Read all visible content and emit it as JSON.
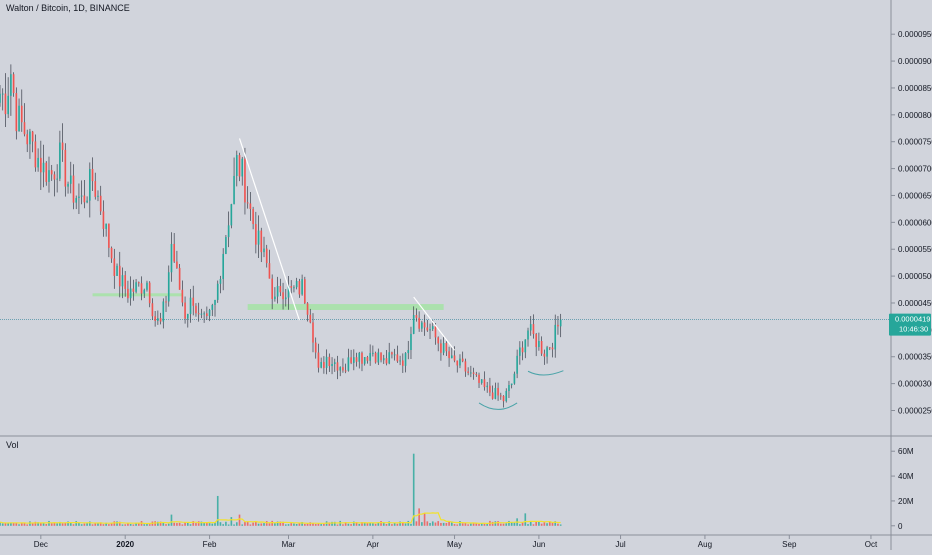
{
  "title": "Walton / Bitcoin, 1D, BINANCE",
  "volume_label": "Vol",
  "colors": {
    "background": "#d1d4dc",
    "up": "#26a69a",
    "down": "#ef5350",
    "price_line": "#4a90a4",
    "zone": "#a5e3a5",
    "trendline": "#ffffff",
    "arc": "#4aa3a8",
    "volume_ma": "#f2e12b",
    "price_label_bg": "#26a69a"
  },
  "current_price": {
    "label": "0.0000419",
    "countdown": "10:46:30"
  },
  "chart_data": [
    {
      "type": "candlestick",
      "y_axis_ticks": [
        "0.0000950",
        "0.0000900",
        "0.0000850",
        "0.0000800",
        "0.0000750",
        "0.0000700",
        "0.0000650",
        "0.0000600",
        "0.0000550",
        "0.0000500",
        "0.0000450",
        "0.0000400",
        "0.0000350",
        "0.0000300",
        "0.0000250"
      ],
      "ylim": [
        2.1e-05,
        9.95e-05
      ],
      "x_axis_ticks": [
        "Dec",
        "2020",
        "Feb",
        "Mar",
        "Apr",
        "May",
        "Jun",
        "Jul",
        "Aug",
        "Sep",
        "Oct"
      ],
      "x_range_days": [
        "2019-11-16",
        "2020-10-08"
      ],
      "x_tick_dates": [
        "2019-12-01",
        "2020-01-01",
        "2020-02-01",
        "2020-03-01",
        "2020-04-01",
        "2020-05-01",
        "2020-06-01",
        "2020-07-01",
        "2020-08-01",
        "2020-09-01",
        "2020-10-01"
      ],
      "close_path": [
        [
          "2019-11-16",
          8.4e-05
        ],
        [
          "2019-11-18",
          8.3e-05
        ],
        [
          "2019-11-20",
          8.8e-05
        ],
        [
          "2019-11-22",
          8e-05
        ],
        [
          "2019-11-25",
          7.7e-05
        ],
        [
          "2019-11-28",
          7.4e-05
        ],
        [
          "2019-12-02",
          7e-05
        ],
        [
          "2019-12-05",
          6.9e-05
        ],
        [
          "2019-12-08",
          7.2e-05
        ],
        [
          "2019-12-12",
          6.6e-05
        ],
        [
          "2019-12-16",
          6.4e-05
        ],
        [
          "2019-12-20",
          6.8e-05
        ],
        [
          "2019-12-23",
          6.3e-05
        ],
        [
          "2019-12-26",
          5.6e-05
        ],
        [
          "2019-12-29",
          5e-05
        ],
        [
          "2020-01-02",
          4.7e-05
        ],
        [
          "2020-01-06",
          4.8e-05
        ],
        [
          "2020-01-09",
          4.9e-05
        ],
        [
          "2020-01-12",
          4.2e-05
        ],
        [
          "2020-01-14",
          4.1e-05
        ],
        [
          "2020-01-16",
          4.6e-05
        ],
        [
          "2020-01-18",
          5.6e-05
        ],
        [
          "2020-01-20",
          5e-05
        ],
        [
          "2020-01-23",
          4.3e-05
        ],
        [
          "2020-01-26",
          4.6e-05
        ],
        [
          "2020-01-28",
          4.2e-05
        ],
        [
          "2020-01-31",
          4.1e-05
        ],
        [
          "2020-02-03",
          4.5e-05
        ],
        [
          "2020-02-06",
          5.5e-05
        ],
        [
          "2020-02-09",
          6.4e-05
        ],
        [
          "2020-02-11",
          7.1e-05
        ],
        [
          "2020-02-13",
          6.9e-05
        ],
        [
          "2020-02-16",
          6.2e-05
        ],
        [
          "2020-02-19",
          5.6e-05
        ],
        [
          "2020-02-22",
          5.2e-05
        ],
        [
          "2020-02-25",
          4.5e-05
        ],
        [
          "2020-02-27",
          4.8e-05
        ],
        [
          "2020-03-02",
          4.7e-05
        ],
        [
          "2020-03-06",
          4.8e-05
        ],
        [
          "2020-03-09",
          4.3e-05
        ],
        [
          "2020-03-12",
          3.2e-05
        ],
        [
          "2020-03-15",
          3.5e-05
        ],
        [
          "2020-03-18",
          3.4e-05
        ],
        [
          "2020-03-22",
          3.3e-05
        ],
        [
          "2020-03-25",
          3.6e-05
        ],
        [
          "2020-03-28",
          3.5e-05
        ],
        [
          "2020-04-01",
          3.6e-05
        ],
        [
          "2020-04-05",
          3.4e-05
        ],
        [
          "2020-04-09",
          3.5e-05
        ],
        [
          "2020-04-13",
          3.45e-05
        ],
        [
          "2020-04-16",
          4.4e-05
        ],
        [
          "2020-04-19",
          4.1e-05
        ],
        [
          "2020-04-22",
          4e-05
        ],
        [
          "2020-04-26",
          3.7e-05
        ],
        [
          "2020-04-30",
          3.4e-05
        ],
        [
          "2020-05-04",
          3.3e-05
        ],
        [
          "2020-05-08",
          3.1e-05
        ],
        [
          "2020-05-12",
          2.9e-05
        ],
        [
          "2020-05-16",
          2.8e-05
        ],
        [
          "2020-05-19",
          2.7e-05
        ],
        [
          "2020-05-22",
          3e-05
        ],
        [
          "2020-05-25",
          3.6e-05
        ],
        [
          "2020-05-28",
          4e-05
        ],
        [
          "2020-05-31",
          3.8e-05
        ],
        [
          "2020-06-03",
          3.6e-05
        ],
        [
          "2020-06-06",
          3.8e-05
        ],
        [
          "2020-06-09",
          4.19e-05
        ]
      ],
      "support_zones": [
        {
          "from": "2019-12-20",
          "to": "2020-01-22",
          "y1": 4.63e-05,
          "y2": 4.68e-05
        },
        {
          "from": "2020-02-15",
          "to": "2020-04-27",
          "y1": 4.37e-05,
          "y2": 4.48e-05
        }
      ],
      "trendlines": [
        {
          "from": [
            "2020-02-12",
            7.56e-05
          ],
          "to": [
            "2020-03-05",
            4.18e-05
          ]
        },
        {
          "from": [
            "2020-04-16",
            4.61e-05
          ],
          "to": [
            "2020-05-01",
            3.62e-05
          ]
        }
      ],
      "arcs": [
        {
          "from": [
            "2020-05-10",
            2.64e-05
          ],
          "mid": [
            "2020-05-17",
            2.52e-05
          ],
          "to": [
            "2020-05-24",
            2.64e-05
          ]
        },
        {
          "from": [
            "2020-05-28",
            3.23e-05
          ],
          "mid": [
            "2020-06-03",
            3.16e-05
          ],
          "to": [
            "2020-06-10",
            3.24e-05
          ]
        }
      ],
      "volume_axis_ticks": [
        "60M",
        "40M",
        "20M",
        "0"
      ],
      "volume_ylim": [
        -5,
        65
      ],
      "volume_spikes": [
        [
          "2020-04-16",
          58
        ],
        [
          "2020-02-04",
          24
        ],
        [
          "2020-01-18",
          9
        ],
        [
          "2020-02-12",
          9
        ],
        [
          "2020-02-09",
          7
        ],
        [
          "2020-04-18",
          14
        ],
        [
          "2020-04-20",
          10
        ],
        [
          "2020-05-27",
          10
        ],
        [
          "2020-05-24",
          6
        ]
      ]
    }
  ]
}
